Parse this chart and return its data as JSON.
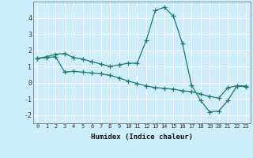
{
  "xlabel": "Humidex (Indice chaleur)",
  "background_color": "#cceeff",
  "grid_color": "#ffffff",
  "line_color": "#1a7a6e",
  "xlim": [
    -0.5,
    23.5
  ],
  "ylim": [
    -2.5,
    5.0
  ],
  "yticks": [
    -2,
    -1,
    0,
    1,
    2,
    3,
    4
  ],
  "xticks": [
    0,
    1,
    2,
    3,
    4,
    5,
    6,
    7,
    8,
    9,
    10,
    11,
    12,
    13,
    14,
    15,
    16,
    17,
    18,
    19,
    20,
    21,
    22,
    23
  ],
  "line1_x": [
    0,
    1,
    2,
    3,
    4,
    5,
    6,
    7,
    8,
    9,
    10,
    11,
    12,
    13,
    14,
    15,
    16,
    17,
    18,
    19,
    20,
    21,
    22,
    23
  ],
  "line1_y": [
    1.5,
    1.6,
    1.75,
    1.8,
    1.55,
    1.45,
    1.3,
    1.15,
    1.0,
    1.1,
    1.2,
    1.2,
    2.6,
    4.45,
    4.65,
    4.1,
    2.4,
    -0.15,
    -1.1,
    -1.8,
    -1.75,
    -1.1,
    -0.2,
    -0.2
  ],
  "line2_x": [
    0,
    1,
    2,
    3,
    4,
    5,
    6,
    7,
    8,
    9,
    10,
    11,
    12,
    13,
    14,
    15,
    16,
    17,
    18,
    19,
    20,
    21,
    22,
    23
  ],
  "line2_y": [
    1.5,
    1.55,
    1.6,
    0.65,
    0.7,
    0.65,
    0.6,
    0.55,
    0.45,
    0.3,
    0.1,
    -0.05,
    -0.2,
    -0.3,
    -0.35,
    -0.4,
    -0.5,
    -0.55,
    -0.7,
    -0.85,
    -0.95,
    -0.3,
    -0.2,
    -0.25
  ]
}
